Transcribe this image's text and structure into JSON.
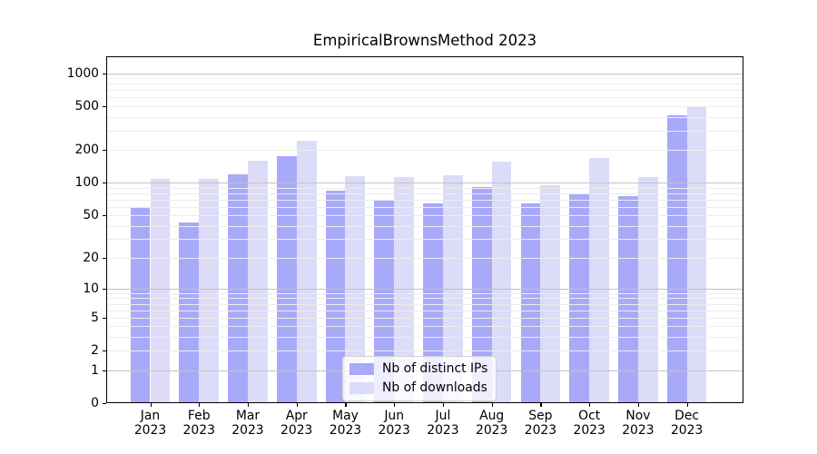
{
  "chart_data": {
    "type": "bar",
    "title": "EmpiricalBrownsMethod 2023",
    "categories": [
      "Jan 2023",
      "Feb 2023",
      "Mar 2023",
      "Apr 2023",
      "May 2023",
      "Jun 2023",
      "Jul 2023",
      "Aug 2023",
      "Sep 2023",
      "Oct 2023",
      "Nov 2023",
      "Dec 2023"
    ],
    "series": [
      {
        "name": "Nb of distinct IPs",
        "color": "#a9a9fa",
        "values": [
          60,
          43,
          120,
          175,
          85,
          70,
          65,
          92,
          65,
          80,
          75,
          410
        ]
      },
      {
        "name": "Nb of downloads",
        "color": "#dcdcf8",
        "values": [
          108,
          108,
          160,
          240,
          115,
          112,
          117,
          155,
          95,
          170,
          113,
          500
        ]
      }
    ],
    "xlabel": "",
    "ylabel": "",
    "yscale": "log1p",
    "yticks": [
      0,
      1,
      2,
      5,
      10,
      20,
      50,
      100,
      200,
      500,
      1000
    ],
    "minor_gridlines": [
      2,
      3,
      4,
      5,
      6,
      7,
      8,
      9,
      20,
      30,
      40,
      50,
      60,
      70,
      80,
      90,
      200,
      300,
      400,
      500,
      600,
      700,
      800,
      900
    ],
    "major_gridlines": [
      1,
      10,
      100,
      1000
    ],
    "ylim": [
      0,
      1424
    ],
    "grid": true,
    "legend_position": "lower center",
    "colors": {
      "major_grid": "#c3c3c3",
      "minor_grid": "#ececec",
      "spine": "#000000",
      "background": "#ffffff"
    }
  }
}
